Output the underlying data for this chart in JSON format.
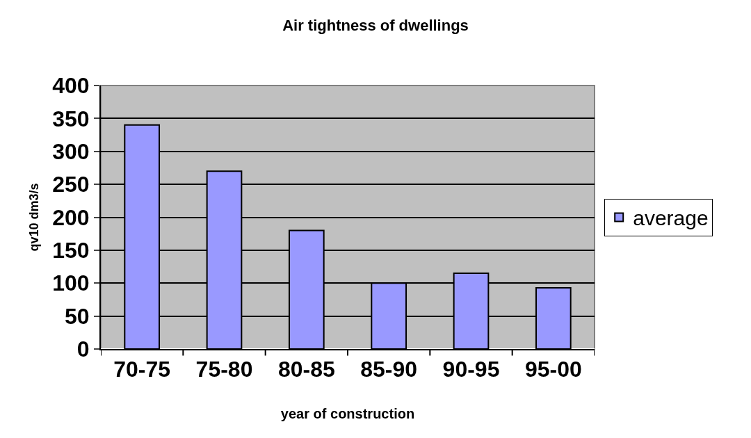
{
  "chart_data": {
    "type": "bar",
    "title": "Air tightness of dwellings",
    "xlabel": "year of construction",
    "ylabel": "qv10 dm3/s",
    "categories": [
      "70-75",
      "75-80",
      "80-85",
      "85-90",
      "90-95",
      "95-00"
    ],
    "series": [
      {
        "name": "average",
        "color": "#9999ff",
        "values": [
          340,
          270,
          180,
          100,
          115,
          93
        ]
      }
    ],
    "ylim": [
      0,
      400
    ],
    "yticks": [
      0,
      50,
      100,
      150,
      200,
      250,
      300,
      350,
      400
    ],
    "grid": "y",
    "legend": "right"
  }
}
